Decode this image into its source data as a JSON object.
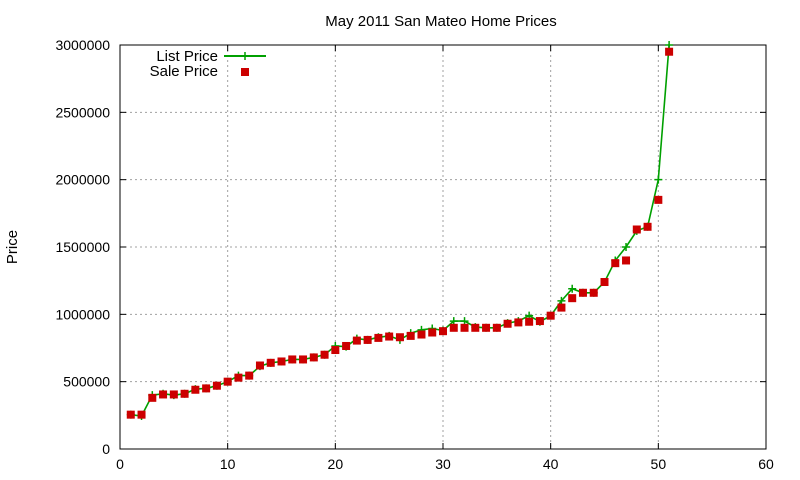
{
  "chart_data": {
    "type": "line",
    "title": "May 2011 San Mateo Home Prices",
    "xlabel": "",
    "ylabel": "Price",
    "xlim": [
      0,
      60
    ],
    "ylim": [
      0,
      3000000
    ],
    "x_ticks": [
      "0",
      "10",
      "20",
      "30",
      "40",
      "50",
      "60"
    ],
    "y_ticks": [
      "0",
      "500000",
      "1000000",
      "1500000",
      "2000000",
      "2500000",
      "3000000"
    ],
    "grid": true,
    "legend_position": "top-left",
    "x": [
      1,
      2,
      3,
      4,
      5,
      6,
      7,
      8,
      9,
      10,
      11,
      12,
      13,
      14,
      15,
      16,
      17,
      18,
      19,
      20,
      21,
      22,
      23,
      24,
      25,
      26,
      27,
      28,
      29,
      30,
      31,
      32,
      33,
      34,
      35,
      36,
      37,
      38,
      39,
      40,
      41,
      42,
      43,
      44,
      45,
      46,
      47,
      48,
      49,
      50,
      51
    ],
    "series": [
      {
        "name": "List Price",
        "style": "line-with-plus-markers",
        "color": "#00a000",
        "values": [
          255000,
          245000,
          400000,
          410000,
          400000,
          410000,
          445000,
          450000,
          470000,
          500000,
          545000,
          545000,
          615000,
          640000,
          650000,
          665000,
          665000,
          680000,
          700000,
          765000,
          760000,
          820000,
          810000,
          830000,
          840000,
          810000,
          860000,
          885000,
          895000,
          880000,
          950000,
          950000,
          905000,
          900000,
          900000,
          935000,
          950000,
          990000,
          945000,
          990000,
          1100000,
          1190000,
          1160000,
          1160000,
          1240000,
          1400000,
          1500000,
          1620000,
          1650000,
          2000000,
          3000000
        ]
      },
      {
        "name": "Sale Price",
        "style": "square-markers",
        "color": "#cc0000",
        "values": [
          255000,
          255000,
          380000,
          405000,
          405000,
          410000,
          440000,
          450000,
          470000,
          500000,
          530000,
          545000,
          620000,
          640000,
          650000,
          665000,
          665000,
          680000,
          700000,
          735000,
          765000,
          805000,
          810000,
          825000,
          835000,
          830000,
          840000,
          850000,
          865000,
          875000,
          900000,
          900000,
          900000,
          900000,
          900000,
          930000,
          940000,
          945000,
          950000,
          990000,
          1050000,
          1120000,
          1160000,
          1160000,
          1240000,
          1380000,
          1400000,
          1630000,
          1650000,
          1850000,
          2950000
        ]
      }
    ]
  }
}
